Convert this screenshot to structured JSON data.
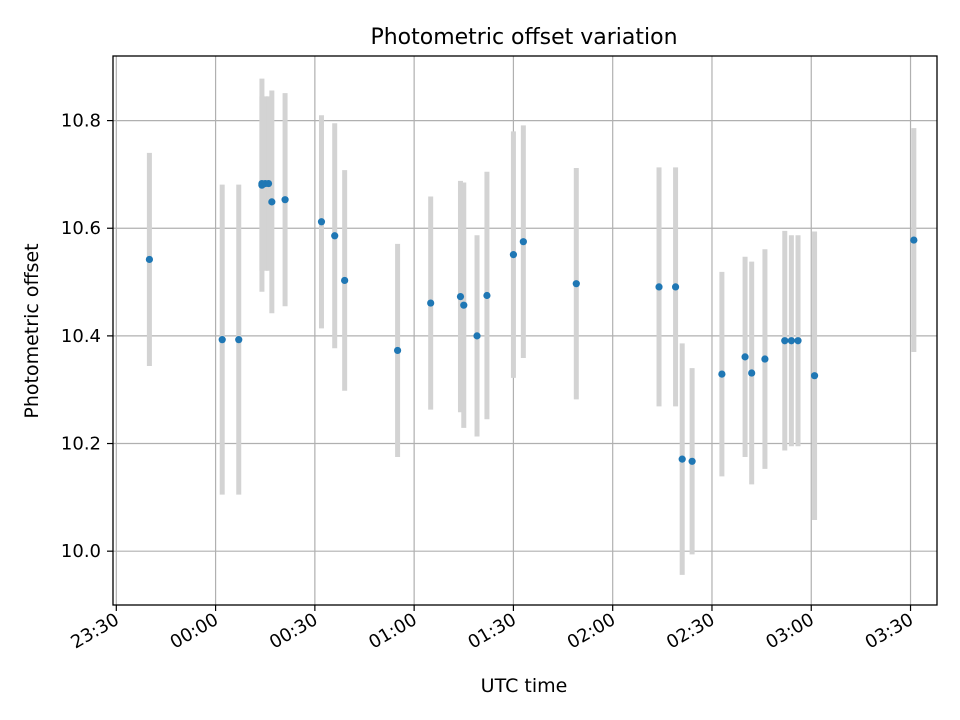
{
  "chart_data": {
    "type": "scatter",
    "title": "Photometric offset variation",
    "xlabel": "UTC time",
    "ylabel": "Photometric offset",
    "x_axis_type": "time",
    "xlim": [
      "23:29",
      "03:38"
    ],
    "ylim": [
      9.9,
      10.92
    ],
    "grid": true,
    "x_ticks": [
      {
        "value": "23:30",
        "label": "23:30"
      },
      {
        "value": "00:00",
        "label": "00:00"
      },
      {
        "value": "00:30",
        "label": "00:30"
      },
      {
        "value": "01:00",
        "label": "01:00"
      },
      {
        "value": "01:30",
        "label": "01:30"
      },
      {
        "value": "02:00",
        "label": "02:00"
      },
      {
        "value": "02:30",
        "label": "02:30"
      },
      {
        "value": "03:00",
        "label": "03:00"
      },
      {
        "value": "03:30",
        "label": "03:30"
      }
    ],
    "y_ticks": [
      {
        "value": 10.0,
        "label": "10.0"
      },
      {
        "value": 10.2,
        "label": "10.2"
      },
      {
        "value": 10.4,
        "label": "10.4"
      },
      {
        "value": 10.6,
        "label": "10.6"
      },
      {
        "value": 10.8,
        "label": "10.8"
      }
    ],
    "series": [
      {
        "color": "#1f77b4",
        "error_color": "#d3d3d3",
        "points": [
          {
            "time": "23:40",
            "y": 10.542,
            "err": 0.198
          },
          {
            "time": "00:02",
            "y": 10.393,
            "err": 0.288
          },
          {
            "time": "00:07",
            "y": 10.393,
            "err": 0.288
          },
          {
            "time": "00:14",
            "y": 10.68,
            "err": 0.198
          },
          {
            "time": "00:14",
            "y": 10.683,
            "err": 0.162
          },
          {
            "time": "00:15",
            "y": 10.683,
            "err": 0.162
          },
          {
            "time": "00:16",
            "y": 10.683,
            "err": 0.162
          },
          {
            "time": "00:17",
            "y": 10.649,
            "err": 0.207
          },
          {
            "time": "00:21",
            "y": 10.653,
            "err": 0.198
          },
          {
            "time": "00:32",
            "y": 10.612,
            "err": 0.198
          },
          {
            "time": "00:36",
            "y": 10.586,
            "err": 0.209
          },
          {
            "time": "00:39",
            "y": 10.503,
            "err": 0.205
          },
          {
            "time": "00:55",
            "y": 10.373,
            "err": 0.198
          },
          {
            "time": "01:05",
            "y": 10.461,
            "err": 0.198
          },
          {
            "time": "01:14",
            "y": 10.473,
            "err": 0.215
          },
          {
            "time": "01:15",
            "y": 10.457,
            "err": 0.228
          },
          {
            "time": "01:19",
            "y": 10.4,
            "err": 0.187
          },
          {
            "time": "01:22",
            "y": 10.475,
            "err": 0.23
          },
          {
            "time": "01:30",
            "y": 10.551,
            "err": 0.229
          },
          {
            "time": "01:33",
            "y": 10.575,
            "err": 0.216
          },
          {
            "time": "01:49",
            "y": 10.497,
            "err": 0.215
          },
          {
            "time": "02:14",
            "y": 10.491,
            "err": 0.222
          },
          {
            "time": "02:19",
            "y": 10.491,
            "err": 0.222
          },
          {
            "time": "02:21",
            "y": 10.171,
            "err": 0.215
          },
          {
            "time": "02:24",
            "y": 10.167,
            "err": 0.173
          },
          {
            "time": "02:33",
            "y": 10.329,
            "err": 0.19
          },
          {
            "time": "02:40",
            "y": 10.361,
            "err": 0.186
          },
          {
            "time": "02:42",
            "y": 10.331,
            "err": 0.207
          },
          {
            "time": "02:46",
            "y": 10.357,
            "err": 0.204
          },
          {
            "time": "02:52",
            "y": 10.391,
            "err": 0.204
          },
          {
            "time": "02:54",
            "y": 10.391,
            "err": 0.196
          },
          {
            "time": "02:56",
            "y": 10.391,
            "err": 0.196
          },
          {
            "time": "03:01",
            "y": 10.326,
            "err": 0.268
          },
          {
            "time": "03:31",
            "y": 10.578,
            "err": 0.208
          }
        ]
      }
    ]
  }
}
